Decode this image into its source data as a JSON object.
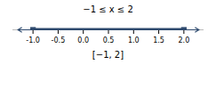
{
  "chart_data": {
    "type": "number_line",
    "title": "−1 ≤ x ≤ 2",
    "annotation": "[−1, 2]",
    "interval": [
      -1.0,
      2.0
    ],
    "line": [
      -1.3,
      2.3
    ],
    "color": "#2E4A6E",
    "marker": "square",
    "xlim": [
      -1.4,
      2.4
    ],
    "xticks": [
      {
        "value": -1.0,
        "label": "-1.0"
      },
      -0.5,
      {
        "value": 0.0,
        "label": "0.0"
      },
      0.5,
      {
        "value": 1.0,
        "label": "1.0"
      },
      1.5,
      {
        "value": 2.0,
        "label": "2.0"
      }
    ]
  }
}
